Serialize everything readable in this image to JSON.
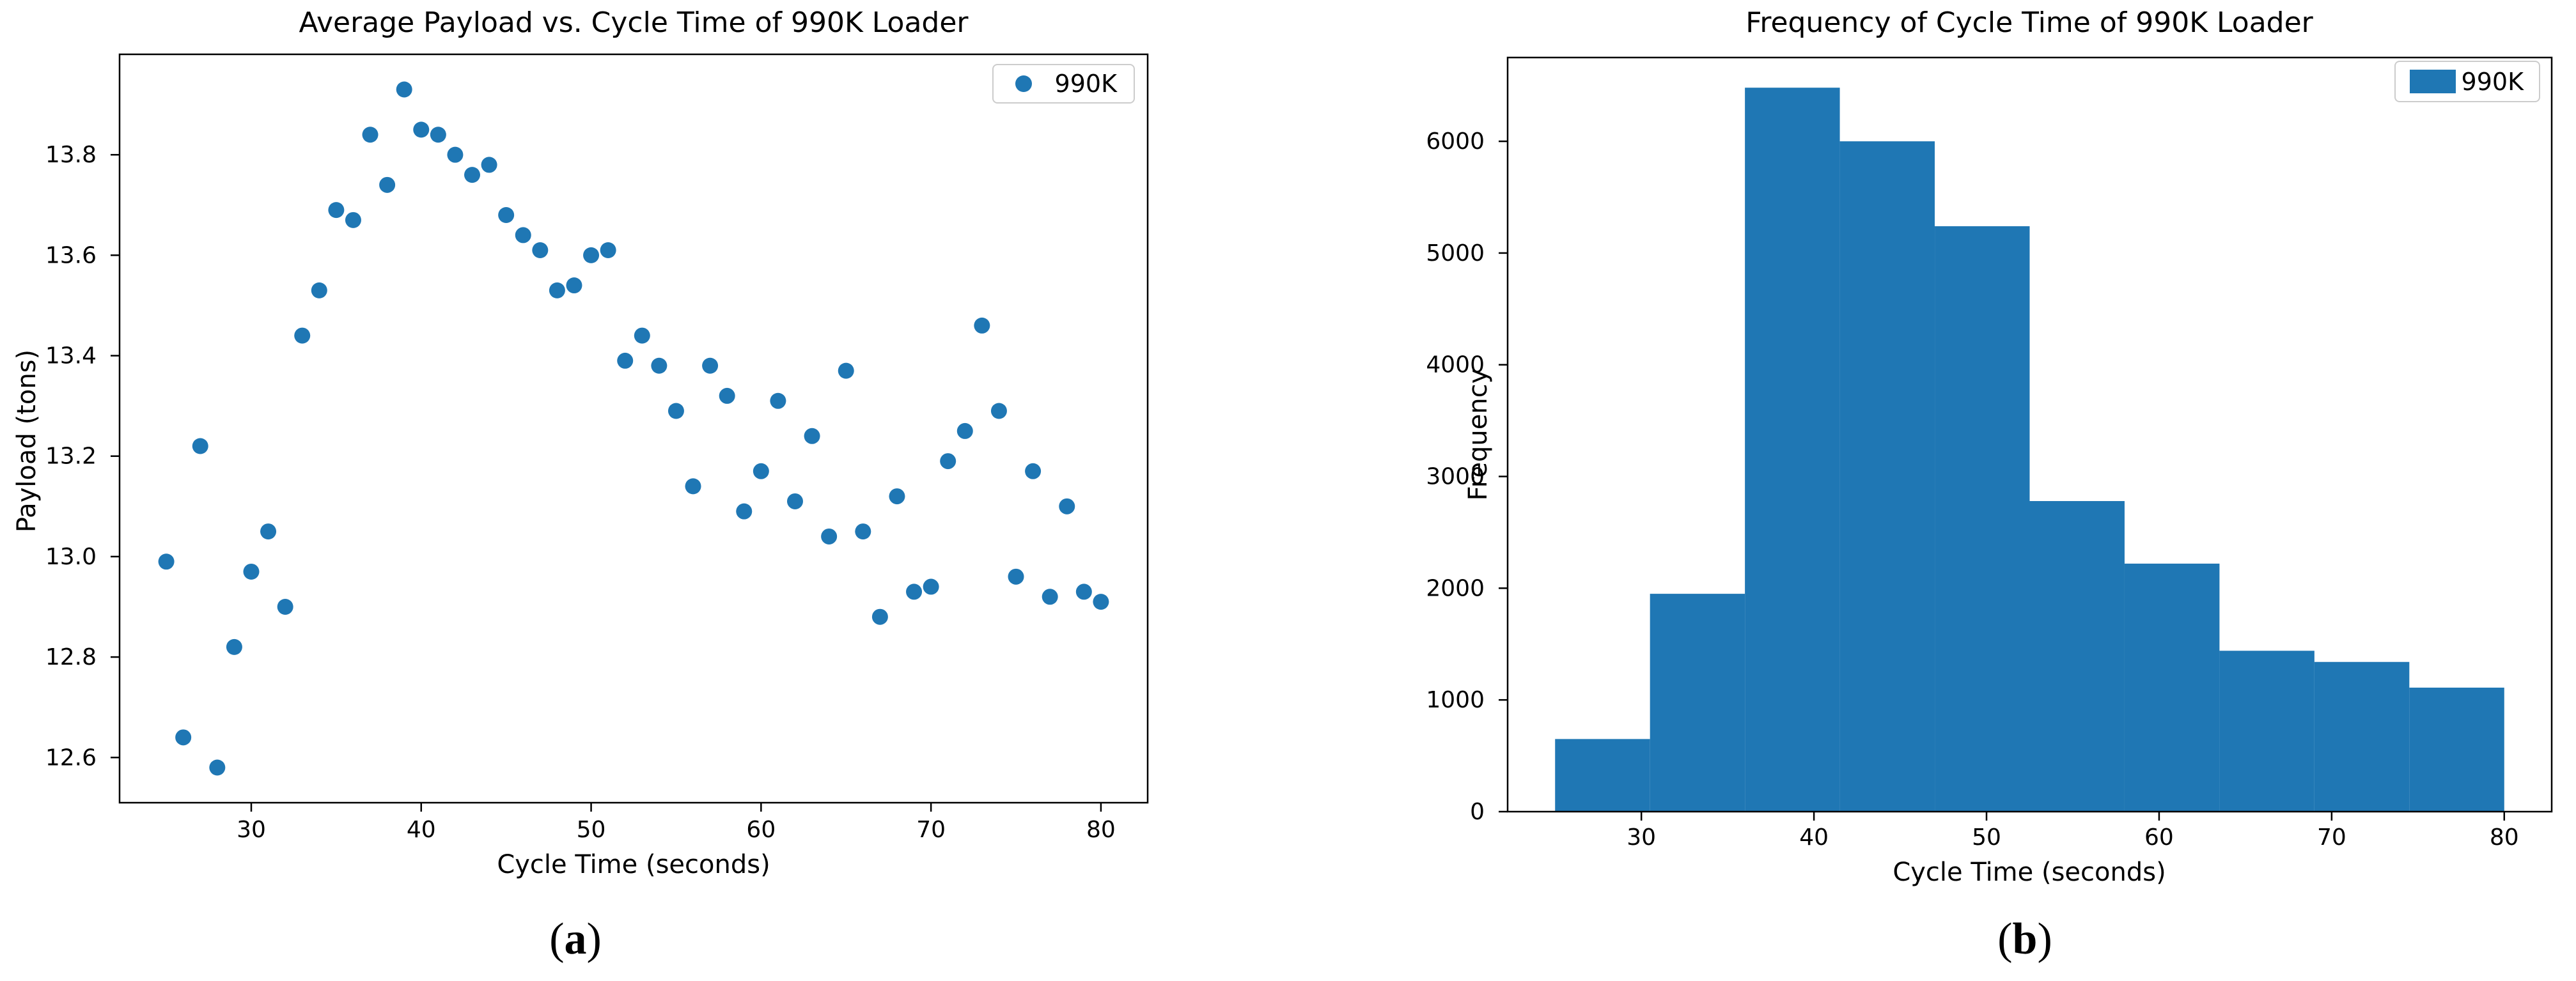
{
  "page": {
    "background": "#ffffff"
  },
  "captions": {
    "left": {
      "open": "(",
      "letter": "a",
      "close": ")"
    },
    "right": {
      "open": "(",
      "letter": "b",
      "close": ")"
    }
  },
  "chart_data": [
    {
      "type": "scatter",
      "panel": "a",
      "title": "Average Payload vs. Cycle Time of 990K Loader",
      "xlabel": "Cycle Time (seconds)",
      "ylabel": "Payload (tons)",
      "legend": {
        "label": "990K",
        "position": "upper right",
        "marker": "circle"
      },
      "color": "#1f77b4",
      "grid": false,
      "xlim": [
        22.25,
        82.75
      ],
      "ylim": [
        12.51,
        14.0
      ],
      "xticks": [
        30,
        40,
        50,
        60,
        70,
        80
      ],
      "yticks": [
        12.6,
        12.8,
        13.0,
        13.2,
        13.4,
        13.6,
        13.8
      ],
      "x": [
        25,
        26,
        27,
        28,
        29,
        30,
        31,
        32,
        33,
        34,
        35,
        36,
        37,
        38,
        39,
        40,
        41,
        42,
        43,
        44,
        45,
        46,
        47,
        48,
        49,
        50,
        51,
        52,
        53,
        54,
        55,
        56,
        57,
        58,
        59,
        60,
        61,
        62,
        63,
        64,
        65,
        66,
        67,
        68,
        69,
        70,
        71,
        72,
        73,
        74,
        75,
        76,
        77,
        78,
        79,
        80
      ],
      "y": [
        12.99,
        12.64,
        13.22,
        12.58,
        12.82,
        12.97,
        13.05,
        12.9,
        13.44,
        13.53,
        13.69,
        13.67,
        13.84,
        13.74,
        13.93,
        13.85,
        13.84,
        13.8,
        13.76,
        13.78,
        13.68,
        13.64,
        13.61,
        13.53,
        13.54,
        13.6,
        13.61,
        13.39,
        13.44,
        13.38,
        13.29,
        13.14,
        13.38,
        13.32,
        13.09,
        13.17,
        13.31,
        13.11,
        13.24,
        13.04,
        13.37,
        13.05,
        12.88,
        13.12,
        12.93,
        12.94,
        13.19,
        13.25,
        13.46,
        13.29,
        12.96,
        13.17,
        12.92,
        13.1,
        12.93,
        12.91
      ]
    },
    {
      "type": "histogram",
      "panel": "b",
      "title": "Frequency of Cycle Time of 990K Loader",
      "xlabel": "Cycle Time (seconds)",
      "ylabel": "Frequency",
      "legend": {
        "label": "990K",
        "position": "upper right",
        "marker": "square"
      },
      "color": "#1f77b4",
      "grid": false,
      "xlim": [
        22.25,
        82.75
      ],
      "ylim": [
        0,
        6750
      ],
      "xticks": [
        30,
        40,
        50,
        60,
        70,
        80
      ],
      "yticks": [
        0,
        1000,
        2000,
        3000,
        4000,
        5000,
        6000
      ],
      "bin_edges": [
        25,
        30.5,
        36,
        41.5,
        47,
        52.5,
        58,
        63.5,
        69,
        74.5,
        80
      ],
      "counts": [
        650,
        1950,
        6480,
        6000,
        5240,
        2780,
        2220,
        1440,
        1340,
        1110
      ]
    }
  ]
}
